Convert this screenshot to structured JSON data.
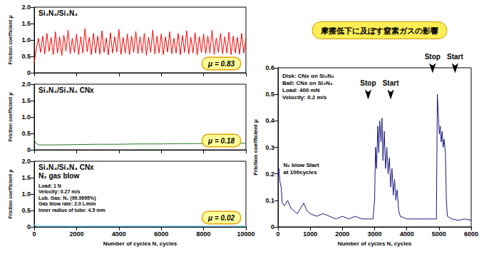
{
  "chart_data": [
    {
      "type": "line",
      "title": "Si₃N₄/Si₃N₄",
      "color": "#ff0000",
      "y_label": "Friction coefficient μ",
      "xlim": [
        0,
        10000
      ],
      "xticks": [
        0,
        2000,
        4000,
        6000,
        8000,
        10000
      ],
      "ylim": [
        0,
        2
      ],
      "yticks": [
        0,
        0.5,
        {
          "value": 1,
          "label": "1.0"
        },
        1.5,
        {
          "value": 2,
          "label": "2.0"
        }
      ],
      "grid": false,
      "tick_labels": "y",
      "annotations": [
        {
          "text": "μ = 0.83"
        }
      ],
      "x": [
        0,
        100,
        200,
        300,
        400,
        500,
        600,
        700,
        800,
        900,
        1000,
        1100,
        1200,
        1300,
        1400,
        1500,
        1600,
        1700,
        1800,
        1900,
        2000,
        2100,
        2200,
        2300,
        2400,
        2500,
        2600,
        2700,
        2800,
        2900,
        3000,
        3100,
        3200,
        3300,
        3400,
        3500,
        3600,
        3700,
        3800,
        3900,
        4000,
        4100,
        4200,
        4300,
        4400,
        4500,
        4600,
        4700,
        4800,
        4900,
        5000,
        5100,
        5200,
        5300,
        5400,
        5500,
        5600,
        5700,
        5800,
        5900,
        6000,
        6100,
        6200,
        6300,
        6400,
        6500,
        6600,
        6700,
        6800,
        6900,
        7000,
        7100,
        7200,
        7300,
        7400,
        7500,
        7600,
        7700,
        7800,
        7900,
        8000,
        8100,
        8200,
        8300,
        8400,
        8500,
        8600,
        8700,
        8800,
        8900,
        9000,
        9100,
        9200,
        9300,
        9400,
        9500,
        9600,
        9700,
        9800,
        9900,
        10000
      ],
      "values": [
        0.3,
        0.75,
        1.05,
        0.62,
        1.12,
        0.58,
        1.2,
        0.65,
        1.08,
        0.55,
        1.25,
        0.6,
        1.1,
        0.52,
        1.15,
        0.66,
        1.3,
        0.58,
        1.05,
        0.62,
        1.18,
        0.55,
        1.1,
        0.6,
        1.35,
        0.64,
        1.08,
        0.55,
        1.2,
        0.6,
        1.12,
        0.57,
        1.28,
        0.62,
        1.06,
        0.54,
        1.22,
        0.6,
        1.1,
        0.63,
        1.32,
        0.56,
        1.08,
        0.6,
        1.18,
        0.55,
        1.12,
        0.62,
        1.26,
        0.58,
        1.1,
        0.6,
        1.2,
        0.53,
        1.08,
        0.62,
        1.3,
        0.57,
        1.12,
        0.6,
        1.18,
        0.55,
        1.1,
        0.63,
        1.25,
        0.58,
        1.05,
        0.6,
        1.2,
        0.55,
        1.14,
        0.62,
        1.28,
        0.57,
        1.08,
        0.6,
        1.22,
        0.54,
        1.1,
        0.62,
        1.18,
        0.58,
        1.12,
        0.6,
        1.3,
        0.56,
        1.06,
        0.62,
        1.2,
        0.58,
        1.1,
        0.6,
        1.24,
        0.55,
        1.12,
        0.6,
        1.08,
        0.57,
        1.2,
        0.6,
        1.05
      ]
    },
    {
      "type": "line",
      "title": "Si₃N₄/Si₃N₄ CNx",
      "color": "#1f7a1f",
      "y_label": "Friction coefficient μ",
      "xlim": [
        0,
        10000
      ],
      "xticks": [
        0,
        2000,
        4000,
        6000,
        8000,
        10000
      ],
      "ylim": [
        0,
        2
      ],
      "yticks": [
        0,
        0.5,
        {
          "value": 1,
          "label": "1.0"
        },
        1.5,
        {
          "value": 2,
          "label": "2.0"
        }
      ],
      "grid": false,
      "tick_labels": "y",
      "annotations": [
        {
          "text": "μ = 0.18"
        }
      ],
      "x": [
        0,
        50,
        200,
        1000,
        2000,
        3000,
        4000,
        5000,
        6000,
        7000,
        8000,
        9000,
        10000
      ],
      "values": [
        0.35,
        0.22,
        0.15,
        0.15,
        0.16,
        0.17,
        0.17,
        0.18,
        0.18,
        0.19,
        0.19,
        0.19,
        0.2
      ]
    },
    {
      "type": "line",
      "title": "Si₃N₄/Si₃N₄ CNx",
      "subtitle": "N₂ gas blow",
      "color": "#33bbee",
      "x_label": "Number of cycles N, cycles",
      "y_label": "Friction coefficient μ",
      "xlim": [
        0,
        10000
      ],
      "xticks": [
        0,
        2000,
        4000,
        6000,
        8000,
        10000
      ],
      "ylim": [
        0,
        2
      ],
      "yticks": [
        0,
        0.5,
        {
          "value": 1,
          "label": "1.0"
        },
        1.5,
        {
          "value": 2,
          "label": "2.0"
        }
      ],
      "grid": false,
      "notes": [
        "Load: 1 N",
        "Velocity: 0.27 m/s",
        "Lub. Gas: N₂ (99.9995%)",
        "Gas blow rate: 2.0 L/min",
        "Inner radius of tube: 4.5 mm"
      ],
      "annotations": [
        {
          "text": "μ = 0.02"
        }
      ],
      "x": [
        0,
        50,
        200,
        2000,
        4000,
        6000,
        8000,
        10000
      ],
      "values": [
        0.08,
        0.03,
        0.02,
        0.02,
        0.02,
        0.02,
        0.02,
        0.02
      ]
    },
    {
      "type": "line",
      "title": "摩擦低下に及ぼす窒素ガスの影響",
      "color": "#1a1a80",
      "x_label": "Number of cycles N, cycles",
      "y_label": "Friction coefficient μ",
      "xlim": [
        0,
        6000
      ],
      "xticks": [
        0,
        1000,
        2000,
        3000,
        4000,
        5000,
        6000
      ],
      "ylim": [
        0,
        0.6
      ],
      "yticks": [
        0,
        0.1,
        0.2,
        0.3,
        0.4,
        0.5,
        0.6
      ],
      "grid": false,
      "notes": [
        "Disk: CNx on Si₃N₄",
        "Ball: CNx on Si₃N₄",
        "Load: 400 mN",
        "Velocity: 0.2 m/s"
      ],
      "annotations": [
        {
          "text": "N₂ blow Start\nat 100cycles",
          "x": 100,
          "y": 0.22
        },
        {
          "text": "Stop",
          "x": 2800,
          "y": 0.48,
          "marker": "arrow"
        },
        {
          "text": "Start",
          "x": 3500,
          "y": 0.48,
          "marker": "arrow"
        },
        {
          "text": "Stop",
          "x": 4800,
          "y": 0.58,
          "marker": "arrow"
        },
        {
          "text": "Start",
          "x": 5500,
          "y": 0.58,
          "marker": "arrow"
        }
      ],
      "x": [
        0,
        30,
        60,
        100,
        130,
        200,
        300,
        400,
        500,
        600,
        700,
        800,
        900,
        1000,
        1200,
        1400,
        1600,
        1800,
        2000,
        2200,
        2400,
        2600,
        2800,
        2950,
        3000,
        3030,
        3060,
        3100,
        3130,
        3160,
        3200,
        3230,
        3260,
        3300,
        3340,
        3380,
        3420,
        3460,
        3500,
        3540,
        3580,
        3620,
        3660,
        3700,
        3750,
        3800,
        4000,
        4200,
        4400,
        4600,
        4800,
        4920,
        4950,
        4980,
        5010,
        5040,
        5070,
        5100,
        5130,
        5160,
        5200,
        5230,
        5260,
        5400,
        5600,
        5800,
        6000
      ],
      "values": [
        0.2,
        0.22,
        0.17,
        0.15,
        0.09,
        0.08,
        0.1,
        0.07,
        0.06,
        0.05,
        0.07,
        0.09,
        0.06,
        0.05,
        0.04,
        0.05,
        0.04,
        0.03,
        0.04,
        0.03,
        0.04,
        0.03,
        0.03,
        0.03,
        0.1,
        0.3,
        0.22,
        0.38,
        0.28,
        0.4,
        0.32,
        0.41,
        0.25,
        0.36,
        0.22,
        0.3,
        0.2,
        0.26,
        0.15,
        0.22,
        0.12,
        0.18,
        0.1,
        0.14,
        0.06,
        0.04,
        0.03,
        0.03,
        0.03,
        0.03,
        0.03,
        0.03,
        0.5,
        0.42,
        0.35,
        0.38,
        0.32,
        0.36,
        0.3,
        0.33,
        0.28,
        0.1,
        0.04,
        0.03,
        0.025,
        0.03,
        0.025
      ]
    }
  ]
}
